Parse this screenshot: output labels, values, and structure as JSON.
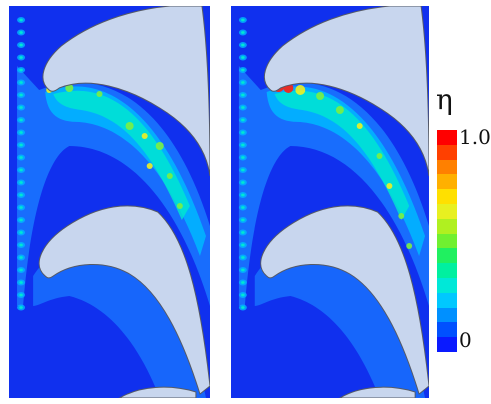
{
  "legend": {
    "symbol": "η",
    "max_label": "1.0",
    "min_label": "0",
    "colors": [
      "#0a1aff",
      "#0050ff",
      "#0090ff",
      "#00c8ff",
      "#00e8d8",
      "#00f0a0",
      "#20f060",
      "#70f030",
      "#b0f020",
      "#e8f020",
      "#ffe000",
      "#ffb000",
      "#ff8000",
      "#ff4000",
      "#ff0000"
    ]
  },
  "panels": [
    {
      "name": "left",
      "field": "low-intensity"
    },
    {
      "name": "right",
      "field": "high-intensity"
    }
  ],
  "palette": {
    "background": "#1030ee",
    "blade": "#c8d6ee",
    "blade_edge": "#555a66",
    "wake_outer": "#1a78ff",
    "wake_mid": "#00b8ff",
    "wake_inner": "#00e8d0",
    "hot_green": "#7cf040",
    "hot_yellow": "#f0f020",
    "hot_red": "#ff2010"
  }
}
